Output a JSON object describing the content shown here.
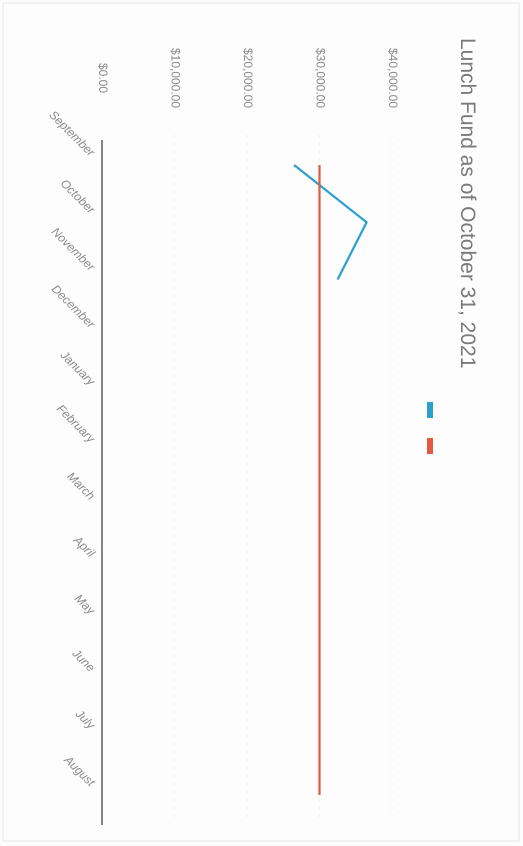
{
  "chart_data": {
    "type": "line",
    "title": "Lunch Fund as of October 31, 2021",
    "categories": [
      "September",
      "October",
      "November",
      "December",
      "January",
      "February",
      "March",
      "April",
      "May",
      "June",
      "July",
      "August"
    ],
    "y_ticks": [
      "$0.00",
      "$10,000.00",
      "$20,000.00",
      "$30,000.00",
      "$40,000.00"
    ],
    "ylim": [
      0,
      40000
    ],
    "grid": true,
    "legend_position": "right",
    "series": [
      {
        "values": [
          26500,
          36500,
          32500,
          null,
          null,
          null,
          null,
          null,
          null,
          null,
          null,
          null
        ],
        "color": "#2a9fd0"
      },
      {
        "values": [
          30000,
          30000,
          30000,
          30000,
          30000,
          30000,
          30000,
          30000,
          30000,
          30000,
          30000,
          30000
        ],
        "color": "#e05a44"
      }
    ]
  }
}
